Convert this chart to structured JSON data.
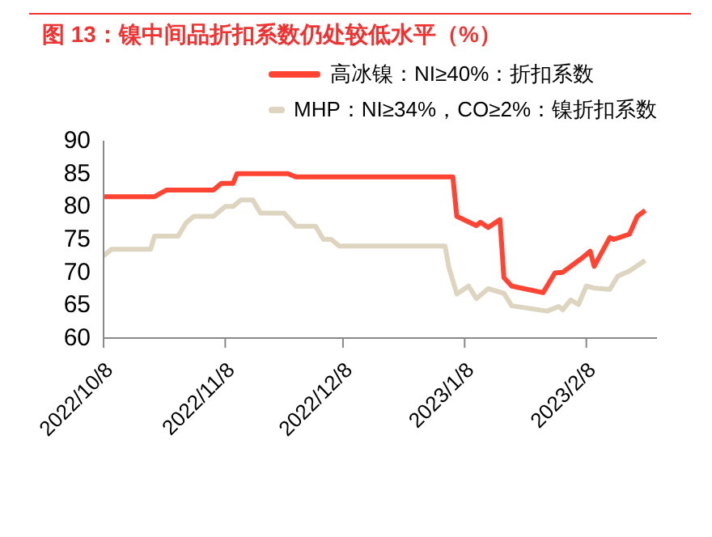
{
  "chart_data": {
    "type": "line",
    "title": "图 13：镍中间品折扣系数仍处较低水平（%）",
    "series": [
      {
        "name": "高冰镍：NI≥40%：折扣系数",
        "color": "#ff4433",
        "x": [
          "2022-10-08",
          "2022-10-21",
          "2022-10-24",
          "2022-11-05",
          "2022-11-07",
          "2022-11-10",
          "2022-11-11",
          "2022-11-24",
          "2022-11-26",
          "2023-01-05",
          "2023-01-06",
          "2023-01-11",
          "2023-01-12",
          "2023-01-14",
          "2023-01-17",
          "2023-01-18",
          "2023-01-20",
          "2023-01-28",
          "2023-01-31",
          "2023-02-02",
          "2023-02-07",
          "2023-02-09",
          "2023-02-10",
          "2023-02-14",
          "2023-02-15",
          "2023-02-19",
          "2023-02-21",
          "2023-02-23"
        ],
        "values": [
          81.5,
          81.5,
          82.5,
          82.5,
          83.5,
          83.5,
          85,
          85,
          84.5,
          84.5,
          78.5,
          77.1,
          77.6,
          76.8,
          78,
          69.2,
          67.9,
          66.9,
          69.9,
          70,
          72.2,
          73.2,
          70.9,
          75.3,
          75,
          75.8,
          78.5,
          79.4
        ]
      },
      {
        "name": "MHP：NI≥34%，CO≥2%：镍折扣系数",
        "color": "#ddd5c0",
        "x": [
          "2022-10-08",
          "2022-10-10",
          "2022-10-20",
          "2022-10-21",
          "2022-10-27",
          "2022-10-29",
          "2022-10-31",
          "2022-11-05",
          "2022-11-08",
          "2022-11-10",
          "2022-11-12",
          "2022-11-15",
          "2022-11-17",
          "2022-11-23",
          "2022-11-26",
          "2022-12-01",
          "2022-12-03",
          "2022-12-05",
          "2022-12-07",
          "2023-01-03",
          "2023-01-04",
          "2023-01-06",
          "2023-01-09",
          "2023-01-11",
          "2023-01-14",
          "2023-01-18",
          "2023-01-20",
          "2023-01-29",
          "2023-02-01",
          "2023-02-02",
          "2023-02-04",
          "2023-02-06",
          "2023-02-08",
          "2023-02-10",
          "2023-02-14",
          "2023-02-16",
          "2023-02-19",
          "2023-02-23"
        ],
        "values": [
          72.5,
          73.5,
          73.5,
          75.5,
          75.5,
          77.5,
          78.5,
          78.5,
          80,
          80,
          81,
          81,
          79,
          79,
          77,
          77,
          75,
          75,
          74,
          74,
          70.7,
          66.7,
          67.9,
          66,
          67.5,
          66.8,
          64.9,
          64.1,
          64.8,
          64.3,
          65.8,
          65.1,
          67.9,
          67.6,
          67.4,
          69.4,
          70.2,
          71.8
        ]
      }
    ],
    "xlim": [
      "2022-10-08",
      "2023-02-26"
    ],
    "xticks": [
      {
        "value": "2022-10-08",
        "label": "2022/10/8"
      },
      {
        "value": "2022-11-08",
        "label": "2022/11/8"
      },
      {
        "value": "2022-12-08",
        "label": "2022/12/8"
      },
      {
        "value": "2023-01-08",
        "label": "2023/1/8"
      },
      {
        "value": "2023-02-08",
        "label": "2023/2/8"
      }
    ],
    "ylim": [
      60,
      90
    ],
    "yticks": [
      60,
      65,
      70,
      75,
      80,
      85,
      90
    ],
    "legend": "top",
    "marker": "none",
    "line_style": "solid"
  }
}
